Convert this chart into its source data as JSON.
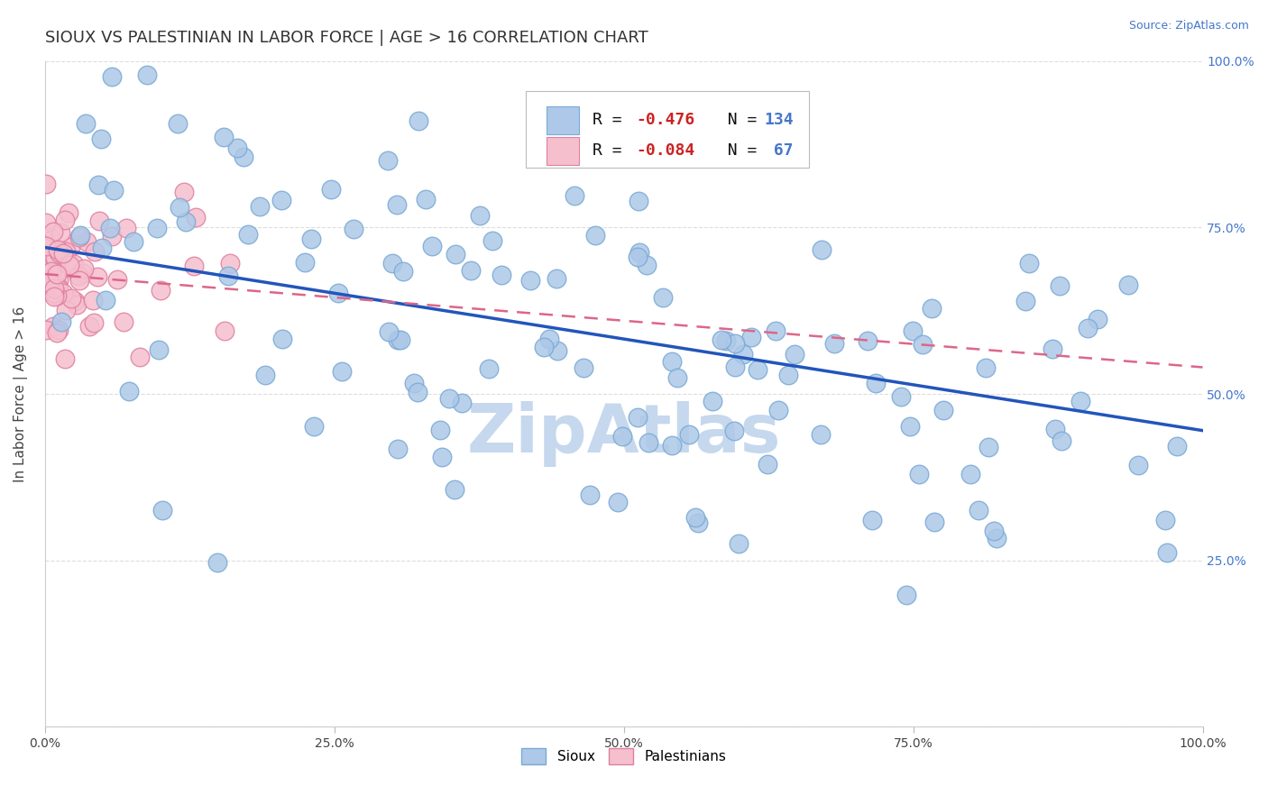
{
  "title": "SIOUX VS PALESTINIAN IN LABOR FORCE | AGE > 16 CORRELATION CHART",
  "source_text": "Source: ZipAtlas.com",
  "ylabel": "In Labor Force | Age > 16",
  "xlim": [
    0.0,
    1.0
  ],
  "ylim": [
    0.0,
    1.0
  ],
  "xticks": [
    0.0,
    0.25,
    0.5,
    0.75,
    1.0
  ],
  "yticks": [
    0.0,
    0.25,
    0.5,
    0.75,
    1.0
  ],
  "xticklabels": [
    "0.0%",
    "25.0%",
    "50.0%",
    "75.0%",
    "100.0%"
  ],
  "right_yticklabels": [
    "",
    "25.0%",
    "50.0%",
    "75.0%",
    "100.0%"
  ],
  "sioux_color": "#adc8e8",
  "sioux_edge_color": "#7aaad4",
  "palestinian_color": "#f5bfce",
  "palestinian_edge_color": "#e080a0",
  "blue_line_color": "#2255bb",
  "pink_line_color": "#dd6688",
  "background_color": "#ffffff",
  "grid_color": "#dddddd",
  "watermark_text": "ZipAtlas",
  "watermark_color": "#c5d8ed",
  "sioux_R": -0.476,
  "sioux_N": 134,
  "palestinian_R": -0.084,
  "palestinian_N": 67,
  "blue_line_y0": 0.72,
  "blue_line_y1": 0.445,
  "pink_line_y0": 0.68,
  "pink_line_y1": 0.54,
  "title_fontsize": 13,
  "axis_label_fontsize": 11,
  "tick_fontsize": 10,
  "legend_fontsize": 13,
  "right_tick_color": "#4477cc"
}
